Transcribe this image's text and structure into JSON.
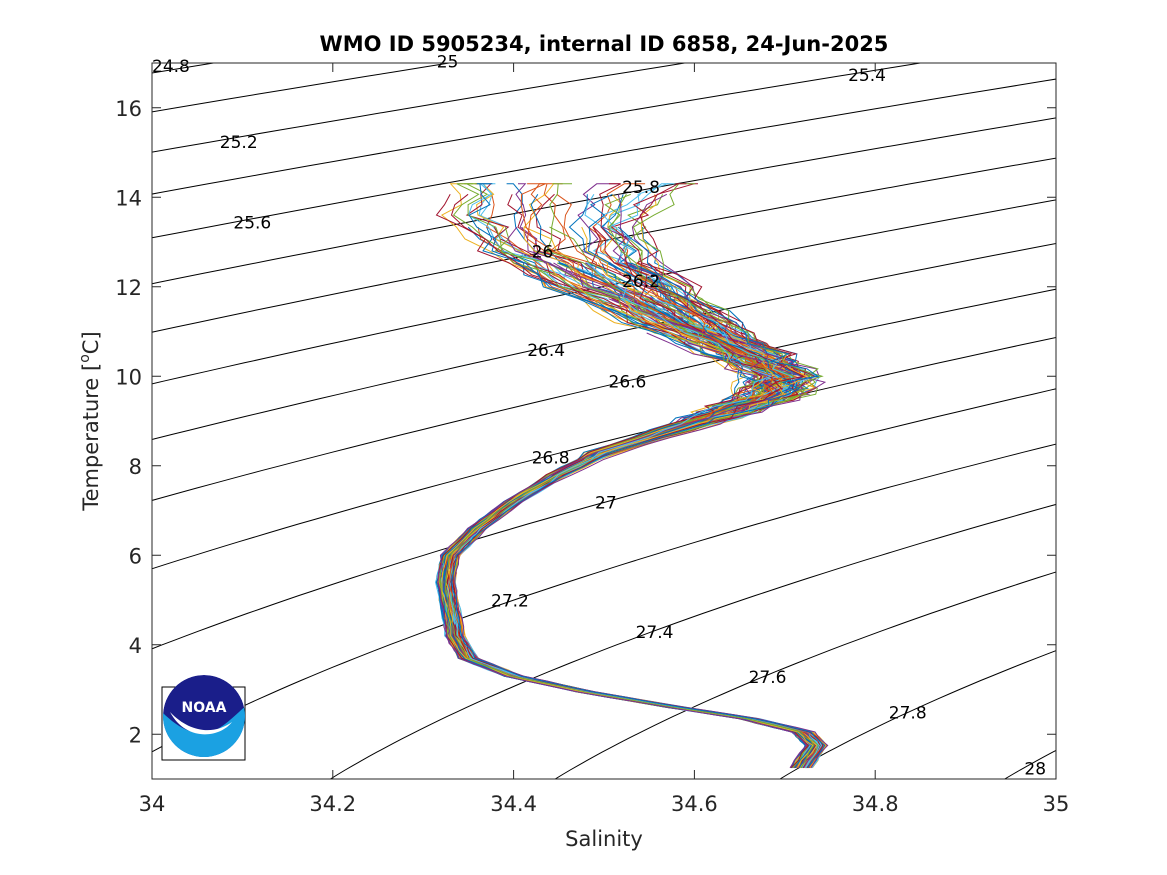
{
  "chart_data": {
    "type": "line",
    "title": "WMO ID 5905234, internal ID 6858, 24-Jun-2025",
    "xlabel": "Salinity",
    "ylabel_main": "Temperature [",
    "ylabel_sup": "o",
    "ylabel_end": "C]",
    "xlim": [
      34,
      35
    ],
    "ylim": [
      1,
      17
    ],
    "x_ticks": [
      34,
      34.2,
      34.4,
      34.6,
      34.8,
      35
    ],
    "x_tick_labels": [
      "34",
      "34.2",
      "34.4",
      "34.6",
      "34.8",
      "35"
    ],
    "y_ticks": [
      2,
      4,
      6,
      8,
      10,
      12,
      14,
      16
    ],
    "y_tick_labels": [
      "2",
      "4",
      "6",
      "8",
      "10",
      "12",
      "14",
      "16"
    ],
    "grid": false,
    "legend": "none",
    "contour_color": "#000000",
    "profile_count": 120,
    "mean_profile": [
      [
        34.718,
        1.25
      ],
      [
        34.735,
        1.75
      ],
      [
        34.72,
        2.05
      ],
      [
        34.66,
        2.35
      ],
      [
        34.58,
        2.6
      ],
      [
        34.48,
        2.95
      ],
      [
        34.4,
        3.3
      ],
      [
        34.35,
        3.7
      ],
      [
        34.335,
        4.2
      ],
      [
        34.33,
        4.8
      ],
      [
        34.325,
        5.4
      ],
      [
        34.33,
        6.0
      ],
      [
        34.36,
        6.6
      ],
      [
        34.4,
        7.2
      ],
      [
        34.45,
        7.8
      ],
      [
        34.5,
        8.3
      ],
      [
        34.58,
        8.8
      ],
      [
        34.64,
        9.2
      ],
      [
        34.69,
        9.6
      ],
      [
        34.7,
        10.0
      ],
      [
        34.66,
        10.5
      ],
      [
        34.59,
        11.2
      ],
      [
        34.52,
        12.0
      ],
      [
        34.46,
        12.8
      ],
      [
        34.44,
        13.6
      ],
      [
        34.46,
        14.3
      ]
    ],
    "series_colors": [
      "#0072BD",
      "#D95319",
      "#EDB120",
      "#7E2F8E",
      "#77AC30",
      "#4DBEEE",
      "#A2142F"
    ],
    "sigma_contours": [
      {
        "label": "24.8",
        "label_at": [
          34.0,
          16.8
        ]
      },
      {
        "label": "25",
        "label_at": [
          34.315,
          16.9
        ]
      },
      {
        "label": "25.2",
        "label_at": [
          34.075,
          15.1
        ]
      },
      {
        "label": "25.4",
        "label_at": [
          34.77,
          16.6
        ]
      },
      {
        "label": "25.6",
        "label_at": [
          34.09,
          13.3
        ]
      },
      {
        "label": "25.8",
        "label_at": [
          34.52,
          14.1
        ]
      },
      {
        "label": "26",
        "label_at": [
          34.42,
          12.65
        ]
      },
      {
        "label": "26.2",
        "label_at": [
          34.52,
          12.0
        ]
      },
      {
        "label": "26.4",
        "label_at": [
          34.415,
          10.45
        ]
      },
      {
        "label": "26.6",
        "label_at": [
          34.505,
          9.75
        ]
      },
      {
        "label": "26.8",
        "label_at": [
          34.42,
          8.05
        ]
      },
      {
        "label": "27",
        "label_at": [
          34.49,
          7.05
        ]
      },
      {
        "label": "27.2",
        "label_at": [
          34.375,
          4.85
        ]
      },
      {
        "label": "27.4",
        "label_at": [
          34.535,
          4.15
        ]
      },
      {
        "label": "27.6",
        "label_at": [
          34.66,
          3.15
        ]
      },
      {
        "label": "27.8",
        "label_at": [
          34.815,
          2.35
        ]
      },
      {
        "label": "28",
        "label_at": [
          34.965,
          1.1
        ]
      }
    ]
  },
  "logo": {
    "name": "NOAA",
    "text": "NOAA",
    "colors": {
      "navy": "#1a1e8a",
      "light_blue": "#1ba1e2",
      "white": "#ffffff"
    }
  }
}
